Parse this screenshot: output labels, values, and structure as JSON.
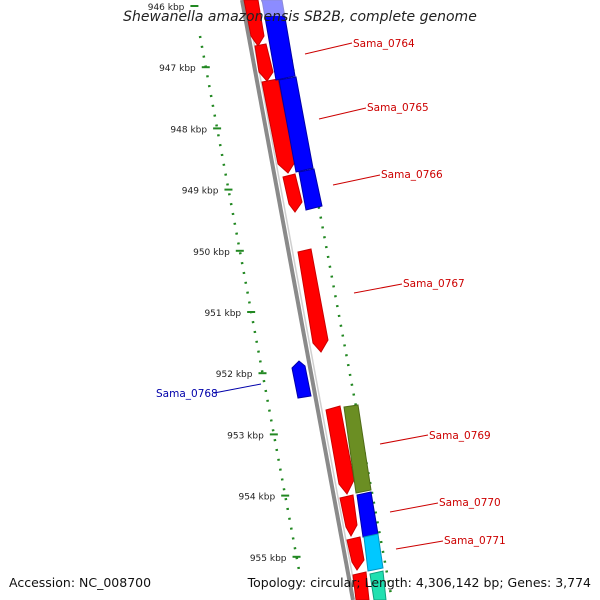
{
  "title": "Shewanella amazonensis SB2B, complete genome",
  "footer": {
    "accession": "Accession: NC_008700",
    "summary": "Topology: circular; Length: 4,306,142 bp; Genes: 3,774"
  },
  "colors": {
    "forward_cds": "#ff0000",
    "reverse_cds": "#0000ff",
    "label_forward": "#cc0000",
    "label_reverse": "#0000aa",
    "tick": "#228822",
    "ring": "#909090",
    "olive": "#6b8e23",
    "cyan": "#00c8ff",
    "teal": "#20e0b0"
  },
  "ticks": [
    {
      "kbp": 946,
      "label": "946 kbp"
    },
    {
      "kbp": 947,
      "label": "947 kbp"
    },
    {
      "kbp": 948,
      "label": "948 kbp"
    },
    {
      "kbp": 949,
      "label": "949 kbp"
    },
    {
      "kbp": 950,
      "label": "950 kbp"
    },
    {
      "kbp": 951,
      "label": "951 kbp"
    },
    {
      "kbp": 952,
      "label": "952 kbp"
    },
    {
      "kbp": 953,
      "label": "953 kbp"
    },
    {
      "kbp": 954,
      "label": "954 kbp"
    },
    {
      "kbp": 955,
      "label": "955 kbp"
    }
  ],
  "genes": [
    {
      "name": "Sama_0764",
      "color": "label_forward"
    },
    {
      "name": "Sama_0765",
      "color": "label_forward"
    },
    {
      "name": "Sama_0766",
      "color": "label_forward"
    },
    {
      "name": "Sama_0767",
      "color": "label_forward"
    },
    {
      "name": "Sama_0768",
      "color": "label_reverse"
    },
    {
      "name": "Sama_0769",
      "color": "label_forward"
    },
    {
      "name": "Sama_0770",
      "color": "label_forward"
    },
    {
      "name": "Sama_0771",
      "color": "label_forward"
    }
  ]
}
